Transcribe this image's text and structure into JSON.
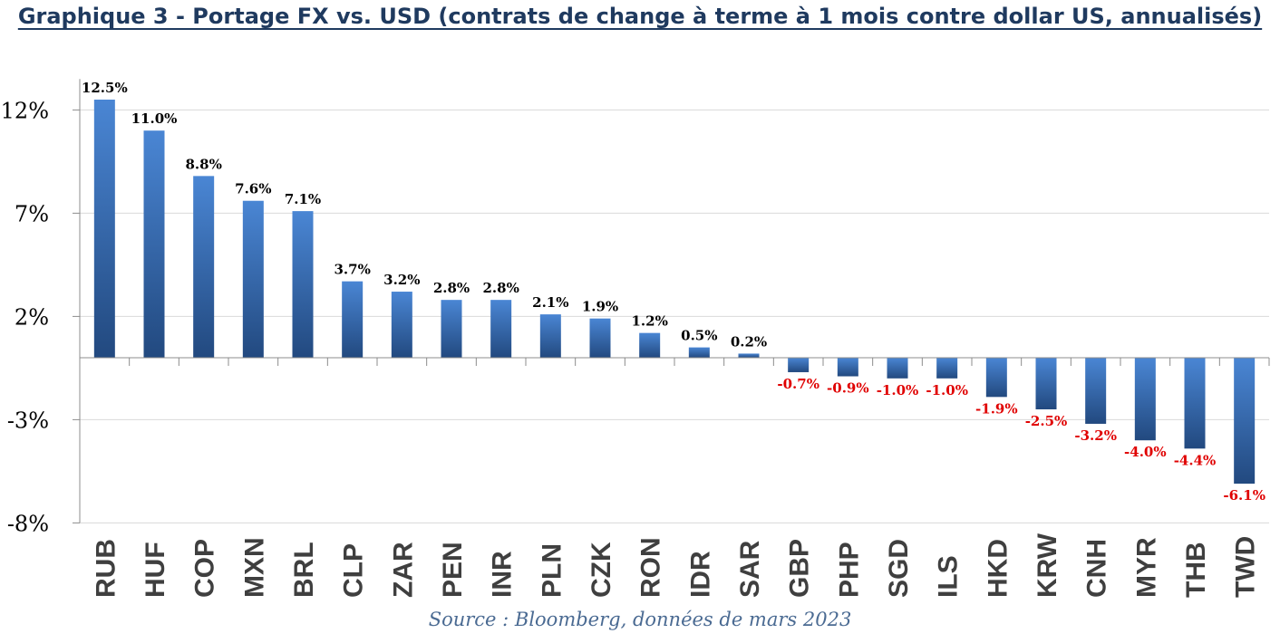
{
  "chart_data": {
    "type": "bar",
    "title": "Graphique 3 - Portage FX vs. USD (contrats de change à terme à 1 mois contre dollar US, annualisés)",
    "source": "Source : Bloomberg, données de mars 2023",
    "categories": [
      "RUB",
      "HUF",
      "COP",
      "MXN",
      "BRL",
      "CLP",
      "ZAR",
      "PEN",
      "INR",
      "PLN",
      "CZK",
      "RON",
      "IDR",
      "SAR",
      "GBP",
      "PHP",
      "SGD",
      "ILS",
      "HKD",
      "KRW",
      "CNH",
      "MYR",
      "THB",
      "TWD"
    ],
    "values": [
      12.5,
      11.0,
      8.8,
      7.6,
      7.1,
      3.7,
      3.2,
      2.8,
      2.8,
      2.1,
      1.9,
      1.2,
      0.5,
      0.2,
      -0.7,
      -0.9,
      -1.0,
      -1.0,
      -1.9,
      -2.5,
      -3.2,
      -4.0,
      -4.4,
      -6.1
    ],
    "data_labels": [
      "12.5%",
      "11.0%",
      "8.8%",
      "7.6%",
      "7.1%",
      "3.7%",
      "3.2%",
      "2.8%",
      "2.8%",
      "2.1%",
      "1.9%",
      "1.2%",
      "0.5%",
      "0.2%",
      "-0.7%",
      "-0.9%",
      "-1.0%",
      "-1.0%",
      "-1.9%",
      "-2.5%",
      "-3.2%",
      "-4.0%",
      "-4.4%",
      "-6.1%"
    ],
    "yticks": [
      12,
      7,
      2,
      -3,
      -8
    ],
    "ytick_labels": [
      "12%",
      "7%",
      "2%",
      "-3%",
      "-8%"
    ],
    "ylim": [
      -8,
      13.5
    ],
    "grid": true,
    "colors": {
      "bar_top": "#4a86d4",
      "bar_bottom": "#22497f",
      "positive_label": "#000000",
      "negative_label": "#e00000",
      "grid": "#d9d9d9",
      "axis": "#8c8c8c"
    }
  }
}
